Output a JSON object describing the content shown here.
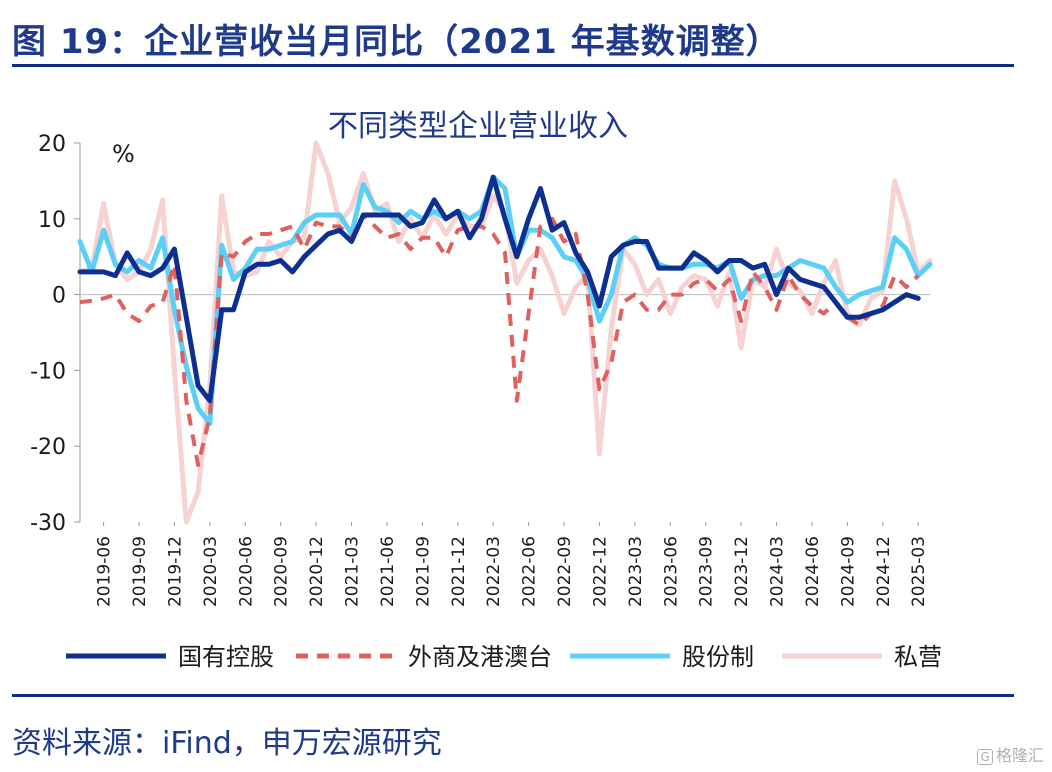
{
  "header": {
    "title": "图 19：企业营收当月同比（2021 年基数调整）"
  },
  "footer": {
    "source": "资料来源：iFind，申万宏源研究",
    "watermark": "格隆汇"
  },
  "colors": {
    "title": "#1f3a8a",
    "rule": "#0d2b8a"
  },
  "chart_data": {
    "type": "line",
    "title": "不同类型企业营业收入",
    "unit_label": "%",
    "ylim": [
      -30,
      20
    ],
    "yticks": [
      20,
      10,
      0,
      -10,
      -20,
      -30
    ],
    "grid": false,
    "legend_position": "bottom",
    "x_tick_labels": [
      "2019-06",
      "2019-09",
      "2019-12",
      "2020-03",
      "2020-06",
      "2020-09",
      "2020-12",
      "2021-03",
      "2021-06",
      "2021-09",
      "2021-12",
      "2022-03",
      "2022-06",
      "2022-09",
      "2022-12",
      "2023-03",
      "2023-06",
      "2023-09",
      "2023-12",
      "2024-03",
      "2024-06",
      "2024-09",
      "2024-12",
      "2025-03"
    ],
    "x": [
      "2019-04",
      "2019-05",
      "2019-06",
      "2019-07",
      "2019-08",
      "2019-09",
      "2019-10",
      "2019-11",
      "2019-12",
      "2020-01",
      "2020-02",
      "2020-03",
      "2020-04",
      "2020-05",
      "2020-06",
      "2020-07",
      "2020-08",
      "2020-09",
      "2020-10",
      "2020-11",
      "2020-12",
      "2021-01",
      "2021-02",
      "2021-03",
      "2021-04",
      "2021-05",
      "2021-06",
      "2021-07",
      "2021-08",
      "2021-09",
      "2021-10",
      "2021-11",
      "2021-12",
      "2022-01",
      "2022-02",
      "2022-03",
      "2022-04",
      "2022-05",
      "2022-06",
      "2022-07",
      "2022-08",
      "2022-09",
      "2022-10",
      "2022-11",
      "2022-12",
      "2023-01",
      "2023-02",
      "2023-03",
      "2023-04",
      "2023-05",
      "2023-06",
      "2023-07",
      "2023-08",
      "2023-09",
      "2023-10",
      "2023-11",
      "2023-12",
      "2024-01",
      "2024-02",
      "2024-03",
      "2024-04",
      "2024-05",
      "2024-06",
      "2024-07",
      "2024-08",
      "2024-09",
      "2024-10",
      "2024-11",
      "2024-12",
      "2025-01",
      "2025-02",
      "2025-03",
      "2025-04"
    ],
    "series": [
      {
        "name": "国有控股",
        "color": "#0d2f8f",
        "style": "solid",
        "values": [
          3.0,
          3.0,
          3.0,
          2.5,
          5.5,
          3.0,
          2.5,
          3.5,
          6.0,
          -3.0,
          -12.0,
          -14.0,
          -2.0,
          -2.0,
          3.0,
          4.0,
          4.0,
          4.5,
          3.0,
          5.0,
          6.5,
          8.0,
          8.5,
          7.0,
          10.5,
          10.5,
          10.5,
          10.5,
          9.0,
          9.5,
          12.5,
          10.0,
          11.0,
          7.5,
          10.0,
          15.5,
          10.0,
          5.0,
          10.0,
          14.0,
          8.5,
          9.5,
          5.5,
          3.0,
          -1.5,
          5.0,
          6.5,
          7.0,
          7.0,
          3.5,
          3.5,
          3.5,
          5.5,
          4.5,
          3.0,
          4.5,
          4.5,
          3.5,
          4.0,
          0.0,
          3.5,
          2.0,
          1.5,
          1.0,
          -1.0,
          -3.0,
          -3.0,
          -2.5,
          -2.0,
          -1.0,
          0.0,
          -0.5,
          null
        ]
      },
      {
        "name": "外商及港澳台",
        "color": "#e06060",
        "style": "dash",
        "values": [
          -1.0,
          -0.8,
          -0.5,
          0.0,
          -2.5,
          -3.5,
          -1.5,
          -1.0,
          4.0,
          -14.0,
          -22.5,
          -16.0,
          5.5,
          5.0,
          7.0,
          8.0,
          8.0,
          8.5,
          9.0,
          6.0,
          9.5,
          9.0,
          9.0,
          7.5,
          10.5,
          9.0,
          7.5,
          8.0,
          6.0,
          7.5,
          7.5,
          5.0,
          8.5,
          9.0,
          9.0,
          8.0,
          5.5,
          -14.0,
          -2.5,
          9.0,
          10.0,
          7.0,
          8.0,
          0.0,
          -12.5,
          -9.0,
          -1.0,
          0.0,
          -2.0,
          -2.0,
          0.0,
          0.0,
          1.5,
          2.0,
          0.5,
          2.0,
          -3.5,
          3.0,
          1.0,
          -2.0,
          2.5,
          0.0,
          -1.5,
          -2.5,
          -1.0,
          -3.0,
          -4.0,
          -2.5,
          -1.5,
          2.5,
          1.0,
          2.5,
          null
        ]
      },
      {
        "name": "股份制",
        "color": "#5bcff5",
        "style": "solid",
        "values": [
          7.0,
          3.0,
          8.5,
          4.0,
          3.0,
          4.5,
          3.5,
          7.5,
          -2.0,
          -9.5,
          -15.0,
          -17.0,
          6.5,
          2.0,
          3.5,
          6.0,
          6.0,
          6.5,
          7.0,
          9.5,
          10.5,
          10.5,
          10.5,
          8.0,
          14.5,
          11.5,
          11.0,
          9.5,
          11.0,
          10.0,
          11.0,
          10.0,
          11.0,
          10.0,
          11.0,
          15.5,
          14.0,
          5.0,
          8.5,
          8.5,
          7.5,
          5.0,
          4.5,
          2.0,
          -3.5,
          0.0,
          6.5,
          7.5,
          6.5,
          4.0,
          3.5,
          3.5,
          4.0,
          4.0,
          3.5,
          4.5,
          -0.5,
          2.0,
          2.5,
          2.5,
          3.5,
          4.5,
          4.0,
          3.5,
          1.0,
          -1.0,
          0.0,
          0.5,
          1.0,
          7.5,
          6.0,
          2.5,
          4.0
        ]
      },
      {
        "name": "私营",
        "color": "#f7d2d2",
        "style": "solid",
        "values": [
          3.0,
          3.5,
          12.0,
          4.0,
          2.0,
          3.0,
          6.0,
          12.5,
          -10.0,
          -30.0,
          -26.0,
          -12.0,
          13.0,
          3.0,
          2.5,
          3.0,
          7.0,
          5.0,
          7.0,
          7.5,
          20.0,
          16.0,
          9.5,
          11.5,
          16.0,
          11.0,
          12.0,
          7.0,
          10.0,
          7.5,
          10.5,
          8.0,
          10.5,
          9.0,
          9.0,
          13.0,
          11.0,
          1.5,
          4.5,
          6.0,
          2.5,
          -2.5,
          1.0,
          2.5,
          -21.0,
          -4.5,
          6.0,
          4.0,
          0.0,
          2.0,
          -2.5,
          1.0,
          2.5,
          2.0,
          -1.5,
          3.0,
          -7.0,
          2.0,
          1.0,
          6.0,
          1.5,
          0.5,
          -2.5,
          1.5,
          4.5,
          -2.5,
          -4.0,
          -0.5,
          0.5,
          15.0,
          10.0,
          3.0,
          4.5
        ]
      }
    ]
  }
}
